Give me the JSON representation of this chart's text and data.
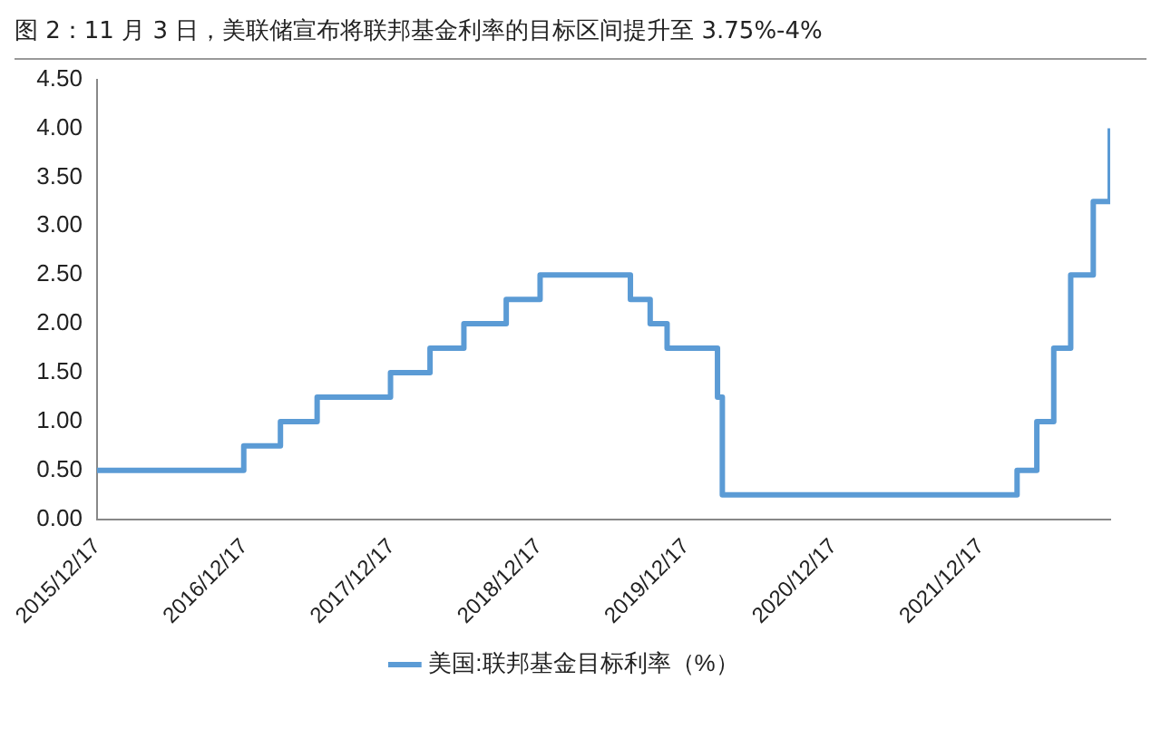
{
  "chart_data": {
    "type": "step",
    "title": "图 2：11 月 3 日，美联储宣布将联邦基金利率的目标区间提升至 3.75%-4%",
    "x": [
      "2015-12-17",
      "2016-12-15",
      "2017-03-16",
      "2017-06-15",
      "2017-12-14",
      "2018-03-22",
      "2018-06-14",
      "2018-09-27",
      "2018-12-20",
      "2019-08-01",
      "2019-09-19",
      "2019-10-31",
      "2020-03-04",
      "2020-03-16",
      "2022-03-17",
      "2022-05-05",
      "2022-06-16",
      "2022-07-28",
      "2022-09-22",
      "2022-11-03"
    ],
    "series": [
      {
        "name": "美国:联邦基金目标利率（%）",
        "color": "#5b9bd5",
        "values": [
          0.5,
          0.75,
          1.0,
          1.25,
          1.5,
          1.75,
          2.0,
          2.25,
          2.5,
          2.25,
          2.0,
          1.75,
          1.25,
          0.25,
          0.5,
          1.0,
          1.75,
          2.5,
          3.25,
          4.0
        ]
      }
    ],
    "xlim": [
      "2015-12-17",
      "2022-11-03"
    ],
    "xticks": [
      {
        "value": "2015-12-17",
        "label": "2015/12/17"
      },
      {
        "value": "2016-12-17",
        "label": "2016/12/17"
      },
      {
        "value": "2017-12-17",
        "label": "2017/12/17"
      },
      {
        "value": "2018-12-17",
        "label": "2018/12/17"
      },
      {
        "value": "2019-12-17",
        "label": "2019/12/17"
      },
      {
        "value": "2020-12-17",
        "label": "2020/12/17"
      },
      {
        "value": "2021-12-17",
        "label": "2021/12/17"
      }
    ],
    "ylim": [
      0,
      4.5
    ],
    "yticks": [
      {
        "value": 0,
        "label": "0.00"
      },
      {
        "value": 0.5,
        "label": "0.50"
      },
      {
        "value": 1,
        "label": "1.00"
      },
      {
        "value": 1.5,
        "label": "1.50"
      },
      {
        "value": 2,
        "label": "2.00"
      },
      {
        "value": 2.5,
        "label": "2.50"
      },
      {
        "value": 3,
        "label": "3.00"
      },
      {
        "value": 3.5,
        "label": "3.50"
      },
      {
        "value": 4,
        "label": "4.00"
      },
      {
        "value": 4.5,
        "label": "4.50"
      }
    ],
    "grid": false,
    "legend": "bottom",
    "marker": "none",
    "line_style": "solid"
  }
}
